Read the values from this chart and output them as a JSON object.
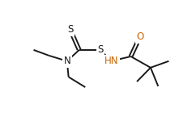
{
  "background": "#ffffff",
  "bond_color": "#1a1a1a",
  "S_color": "#1a1a1a",
  "N_color": "#1a1a1a",
  "O_color": "#cc6600",
  "HN_color": "#cc6600",
  "figsize": [
    2.42,
    1.5
  ],
  "dpi": 100,
  "xlim": [
    0.0,
    1.0
  ],
  "ylim": [
    0.0,
    1.0
  ],
  "lw": 1.4,
  "fs": 8.5
}
